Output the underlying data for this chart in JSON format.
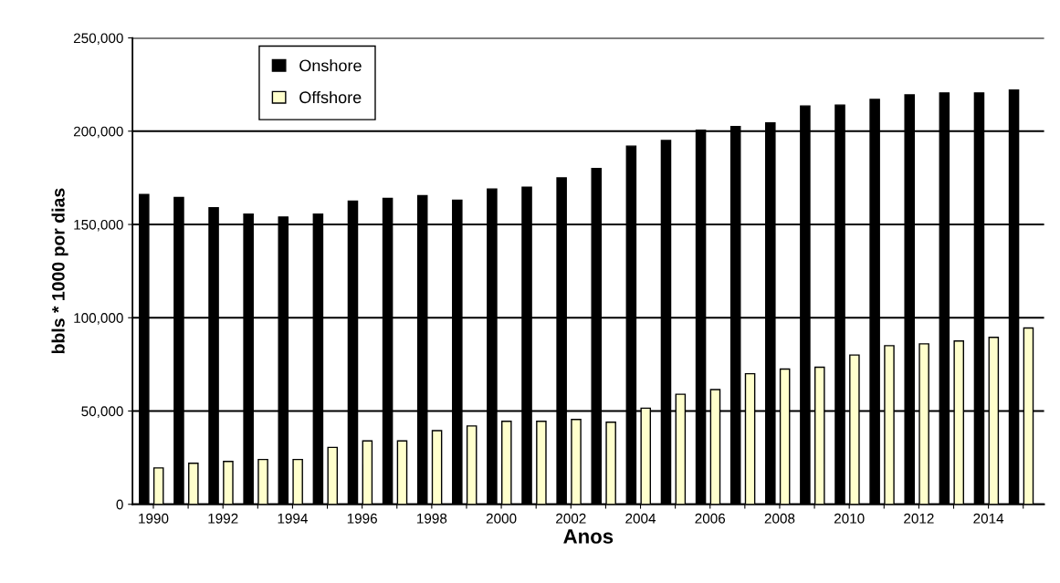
{
  "chart_data": {
    "type": "bar",
    "xlabel": "Anos",
    "ylabel": "bbls * 1000 por dias",
    "categories": [
      "1990",
      null,
      "1992",
      null,
      "1994",
      null,
      "1996",
      null,
      "1998",
      null,
      "2000",
      null,
      "2002",
      null,
      "2004",
      null,
      "2006",
      null,
      "2008",
      null,
      "2010",
      null,
      "2012",
      null,
      "2014",
      null
    ],
    "series": [
      {
        "name": "Onshore",
        "color": "#000000",
        "values": [
          166000,
          164500,
          159000,
          155500,
          154000,
          155500,
          162500,
          164000,
          165500,
          163000,
          169000,
          170000,
          175000,
          180000,
          192000,
          195000,
          200500,
          202500,
          204500,
          213500,
          214000,
          217000,
          219500,
          220500,
          220500,
          222000
        ]
      },
      {
        "name": "Offshore",
        "color": "#ffffcc",
        "values": [
          19500,
          22000,
          23000,
          24000,
          24000,
          30500,
          34000,
          34000,
          39500,
          42000,
          44500,
          44500,
          45500,
          44000,
          51500,
          59000,
          61500,
          70000,
          72500,
          73500,
          80000,
          85000,
          86000,
          87500,
          89500,
          94500
        ]
      }
    ],
    "ylim": [
      0,
      250000
    ],
    "yticks": [
      {
        "value": 0,
        "label": "0"
      },
      {
        "value": 50000,
        "label": "50,000"
      },
      {
        "value": 100000,
        "label": "100,000"
      },
      {
        "value": 150000,
        "label": "150,000"
      },
      {
        "value": 200000,
        "label": "200,000"
      },
      {
        "value": 250000,
        "label": "250,000"
      }
    ],
    "grid": "y",
    "legend": "top left"
  }
}
